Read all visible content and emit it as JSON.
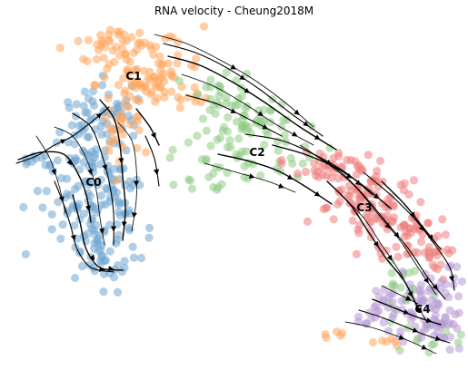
{
  "chart_data": {
    "type": "scatter",
    "title": "RNA velocity - Cheung2018M",
    "xlabel": "",
    "ylabel": "",
    "grid": false,
    "legend": "none",
    "clusters": [
      {
        "name": "C0",
        "color": "#6fa6d1",
        "center": [
          0.2,
          0.5
        ]
      },
      {
        "name": "C1",
        "color": "#ffa55c",
        "center": [
          0.28,
          0.2
        ]
      },
      {
        "name": "C2",
        "color": "#90cc85",
        "center": [
          0.55,
          0.42
        ]
      },
      {
        "name": "C3",
        "color": "#ee7f7d",
        "center": [
          0.78,
          0.57
        ]
      },
      {
        "name": "C4",
        "color": "#b69ad6",
        "center": [
          0.9,
          0.84
        ]
      }
    ]
  }
}
